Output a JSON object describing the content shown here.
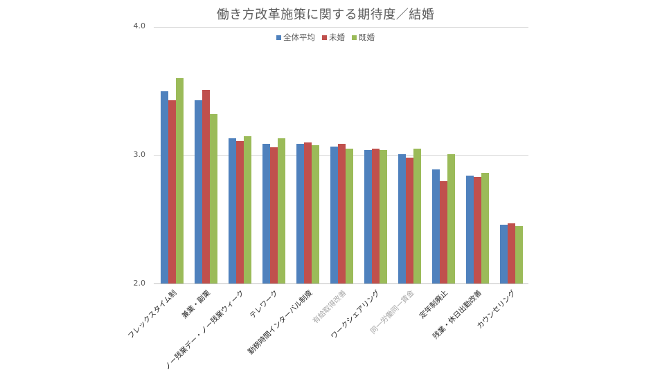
{
  "chart_data": {
    "type": "bar",
    "title": "働き方改革施策に関する期待度／結婚",
    "xlabel": "",
    "ylabel": "",
    "ylim": [
      2.0,
      4.0
    ],
    "yticks": [
      "2.0",
      "3.0",
      "4.0"
    ],
    "grid": true,
    "legend_position": "top",
    "categories": [
      "フレックスタイム制",
      "兼業・副業",
      "ノー残業デー・ノー残業ウィーク",
      "テレワーク",
      "勤務時間インターバル制度",
      "有給取得改善",
      "ワークシェアリング",
      "同一労働同一賃金",
      "定年制廃止",
      "残業・休日出勤改善",
      "カウンセリング"
    ],
    "muted_categories": [
      5,
      7
    ],
    "series": [
      {
        "name": "全体平均",
        "color": "#4F81BD",
        "values": [
          3.5,
          3.43,
          3.13,
          3.09,
          3.09,
          3.07,
          3.04,
          3.01,
          2.89,
          2.84,
          2.46
        ]
      },
      {
        "name": "未婚",
        "color": "#C0504D",
        "values": [
          3.43,
          3.51,
          3.11,
          3.06,
          3.1,
          3.09,
          3.05,
          2.98,
          2.8,
          2.83,
          2.47
        ]
      },
      {
        "name": "既婚",
        "color": "#9BBB59",
        "values": [
          3.6,
          3.32,
          3.15,
          3.13,
          3.08,
          3.05,
          3.04,
          3.05,
          3.01,
          2.86,
          2.45
        ]
      }
    ]
  }
}
